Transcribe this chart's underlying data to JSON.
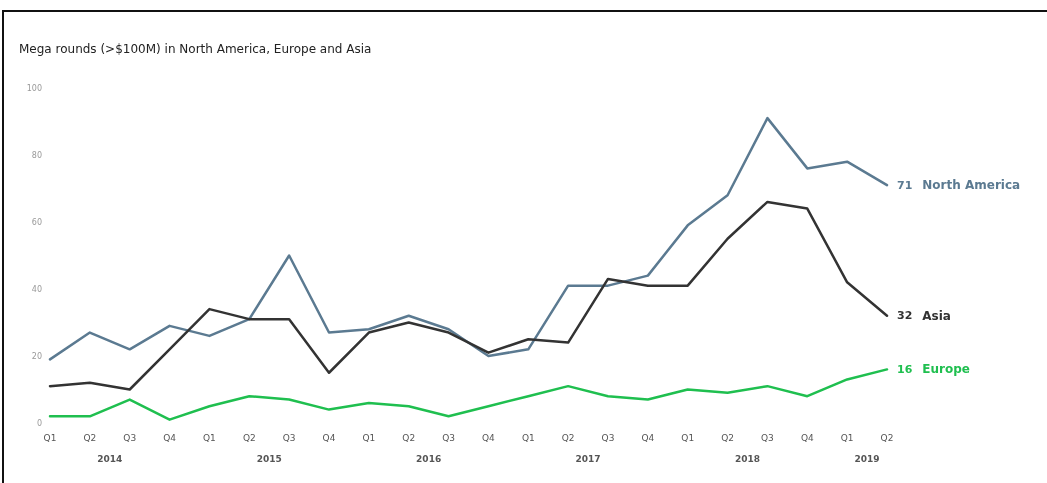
{
  "chart_data": {
    "type": "line",
    "title": "Mega rounds (>$100M) in North America, Europe and Asia",
    "categories": [
      "Q1",
      "Q2",
      "Q3",
      "Q4",
      "Q1",
      "Q2",
      "Q3",
      "Q4",
      "Q1",
      "Q2",
      "Q3",
      "Q4",
      "Q1",
      "Q2",
      "Q3",
      "Q4",
      "Q1",
      "Q2",
      "Q3",
      "Q4",
      "Q1",
      "Q2"
    ],
    "annotations": [
      "2014",
      "2015",
      "2016",
      "2017",
      "2018",
      "2019"
    ],
    "series": [
      {
        "name": "North America",
        "color": "#5b7a91",
        "values": [
          19,
          27,
          22,
          29,
          26,
          31,
          50,
          27,
          28,
          32,
          28,
          20,
          22,
          41,
          41,
          44,
          59,
          68,
          91,
          76,
          78,
          71
        ],
        "value_labels": [
          null,
          null,
          null,
          null,
          null,
          null,
          null,
          null,
          null,
          null,
          null,
          null,
          null,
          null,
          null,
          null,
          null,
          null,
          null,
          null,
          null,
          "71"
        ]
      },
      {
        "name": "Asia",
        "color": "#333333",
        "values": [
          11,
          12,
          10,
          22,
          34,
          31,
          31,
          15,
          27,
          30,
          27,
          21,
          25,
          24,
          43,
          41,
          41,
          55,
          66,
          64,
          42,
          32
        ],
        "value_labels": [
          null,
          null,
          null,
          null,
          null,
          null,
          null,
          null,
          null,
          null,
          null,
          null,
          null,
          null,
          null,
          null,
          null,
          null,
          null,
          null,
          null,
          "32"
        ]
      },
      {
        "name": "Europe",
        "color": "#1fbf4f",
        "values": [
          2,
          2,
          7,
          1,
          5,
          8,
          7,
          4,
          6,
          5,
          2,
          5,
          8,
          11,
          8,
          7,
          10,
          9,
          11,
          8,
          13,
          16
        ],
        "value_labels": [
          null,
          null,
          null,
          null,
          null,
          null,
          null,
          null,
          null,
          null,
          null,
          null,
          null,
          null,
          null,
          null,
          null,
          null,
          null,
          null,
          null,
          "16"
        ]
      }
    ],
    "ylim": [
      0,
      100
    ],
    "yticks": [
      0,
      20,
      40,
      60,
      80,
      100
    ],
    "grid": false,
    "legend": false,
    "marker": "none",
    "line_style": "solid"
  }
}
